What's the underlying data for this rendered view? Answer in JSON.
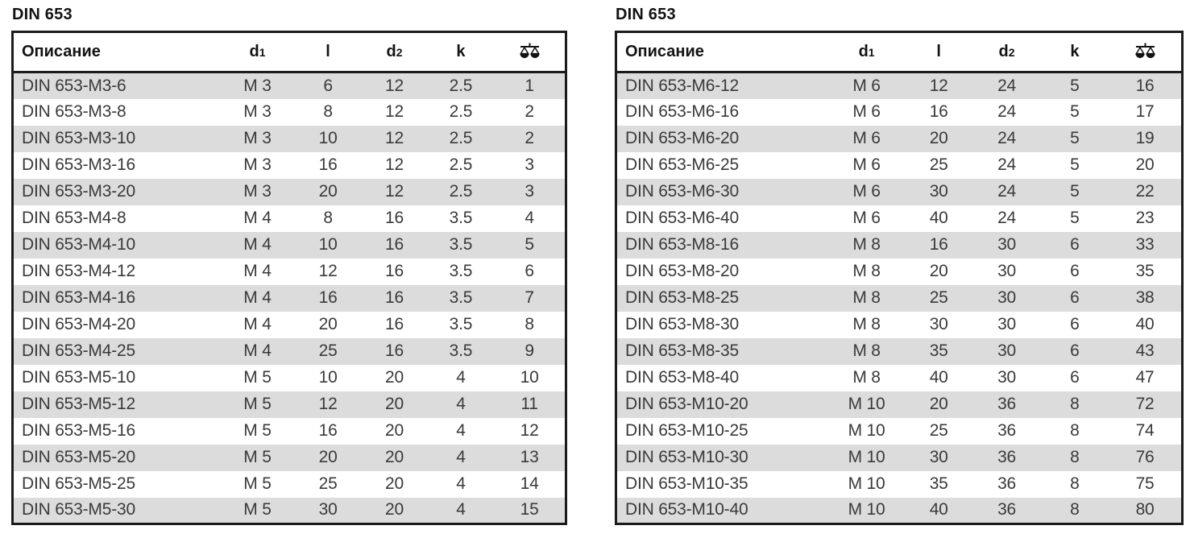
{
  "colors": {
    "row_alt_gray": "#dcdcdd",
    "table_border": "#1b1b1b",
    "text": "#3a3a3a"
  },
  "tables": [
    {
      "title": "DIN 653",
      "columns": [
        {
          "name": "description",
          "label": "Описание",
          "align": "left"
        },
        {
          "name": "d1",
          "label": "d",
          "sub": "1",
          "align": "center"
        },
        {
          "name": "l",
          "label": "l",
          "align": "center"
        },
        {
          "name": "d2",
          "label": "d",
          "sub": "2",
          "align": "center"
        },
        {
          "name": "k",
          "label": "k",
          "align": "center"
        },
        {
          "name": "weight",
          "label": "",
          "icon": "balance-scale-icon",
          "align": "center"
        }
      ],
      "rows": [
        [
          "DIN 653-M3-6",
          "M 3",
          "6",
          "12",
          "2.5",
          "1"
        ],
        [
          "DIN 653-M3-8",
          "M 3",
          "8",
          "12",
          "2.5",
          "2"
        ],
        [
          "DIN 653-M3-10",
          "M 3",
          "10",
          "12",
          "2.5",
          "2"
        ],
        [
          "DIN 653-M3-16",
          "M 3",
          "16",
          "12",
          "2.5",
          "3"
        ],
        [
          "DIN 653-M3-20",
          "M 3",
          "20",
          "12",
          "2.5",
          "3"
        ],
        [
          "DIN 653-M4-8",
          "M 4",
          "8",
          "16",
          "3.5",
          "4"
        ],
        [
          "DIN 653-M4-10",
          "M 4",
          "10",
          "16",
          "3.5",
          "5"
        ],
        [
          "DIN 653-M4-12",
          "M 4",
          "12",
          "16",
          "3.5",
          "6"
        ],
        [
          "DIN 653-M4-16",
          "M 4",
          "16",
          "16",
          "3.5",
          "7"
        ],
        [
          "DIN 653-M4-20",
          "M 4",
          "20",
          "16",
          "3.5",
          "8"
        ],
        [
          "DIN 653-M4-25",
          "M 4",
          "25",
          "16",
          "3.5",
          "9"
        ],
        [
          "DIN 653-M5-10",
          "M 5",
          "10",
          "20",
          "4",
          "10"
        ],
        [
          "DIN 653-M5-12",
          "M 5",
          "12",
          "20",
          "4",
          "11"
        ],
        [
          "DIN 653-M5-16",
          "M 5",
          "16",
          "20",
          "4",
          "12"
        ],
        [
          "DIN 653-M5-20",
          "M 5",
          "20",
          "20",
          "4",
          "13"
        ],
        [
          "DIN 653-M5-25",
          "M 5",
          "25",
          "20",
          "4",
          "14"
        ],
        [
          "DIN 653-M5-30",
          "M 5",
          "30",
          "20",
          "4",
          "15"
        ]
      ]
    },
    {
      "title": "DIN 653",
      "columns": [
        {
          "name": "description",
          "label": "Описание",
          "align": "left"
        },
        {
          "name": "d1",
          "label": "d",
          "sub": "1",
          "align": "center"
        },
        {
          "name": "l",
          "label": "l",
          "align": "center"
        },
        {
          "name": "d2",
          "label": "d",
          "sub": "2",
          "align": "center"
        },
        {
          "name": "k",
          "label": "k",
          "align": "center"
        },
        {
          "name": "weight",
          "label": "",
          "icon": "balance-scale-icon",
          "align": "center"
        }
      ],
      "rows": [
        [
          "DIN 653-M6-12",
          "M 6",
          "12",
          "24",
          "5",
          "16"
        ],
        [
          "DIN 653-M6-16",
          "M 6",
          "16",
          "24",
          "5",
          "17"
        ],
        [
          "DIN 653-M6-20",
          "M 6",
          "20",
          "24",
          "5",
          "19"
        ],
        [
          "DIN 653-M6-25",
          "M 6",
          "25",
          "24",
          "5",
          "20"
        ],
        [
          "DIN 653-M6-30",
          "M 6",
          "30",
          "24",
          "5",
          "22"
        ],
        [
          "DIN 653-M6-40",
          "M 6",
          "40",
          "24",
          "5",
          "23"
        ],
        [
          "DIN 653-M8-16",
          "M 8",
          "16",
          "30",
          "6",
          "33"
        ],
        [
          "DIN 653-M8-20",
          "M 8",
          "20",
          "30",
          "6",
          "35"
        ],
        [
          "DIN 653-M8-25",
          "M 8",
          "25",
          "30",
          "6",
          "38"
        ],
        [
          "DIN 653-M8-30",
          "M 8",
          "30",
          "30",
          "6",
          "40"
        ],
        [
          "DIN 653-M8-35",
          "M 8",
          "35",
          "30",
          "6",
          "43"
        ],
        [
          "DIN 653-M8-40",
          "M 8",
          "40",
          "30",
          "6",
          "47"
        ],
        [
          "DIN 653-M10-20",
          "M 10",
          "20",
          "36",
          "8",
          "72"
        ],
        [
          "DIN 653-M10-25",
          "M 10",
          "25",
          "36",
          "8",
          "74"
        ],
        [
          "DIN 653-M10-30",
          "M 10",
          "30",
          "36",
          "8",
          "76"
        ],
        [
          "DIN 653-M10-35",
          "M 10",
          "35",
          "36",
          "8",
          "75"
        ],
        [
          "DIN 653-M10-40",
          "M 10",
          "40",
          "36",
          "8",
          "80"
        ]
      ]
    }
  ]
}
